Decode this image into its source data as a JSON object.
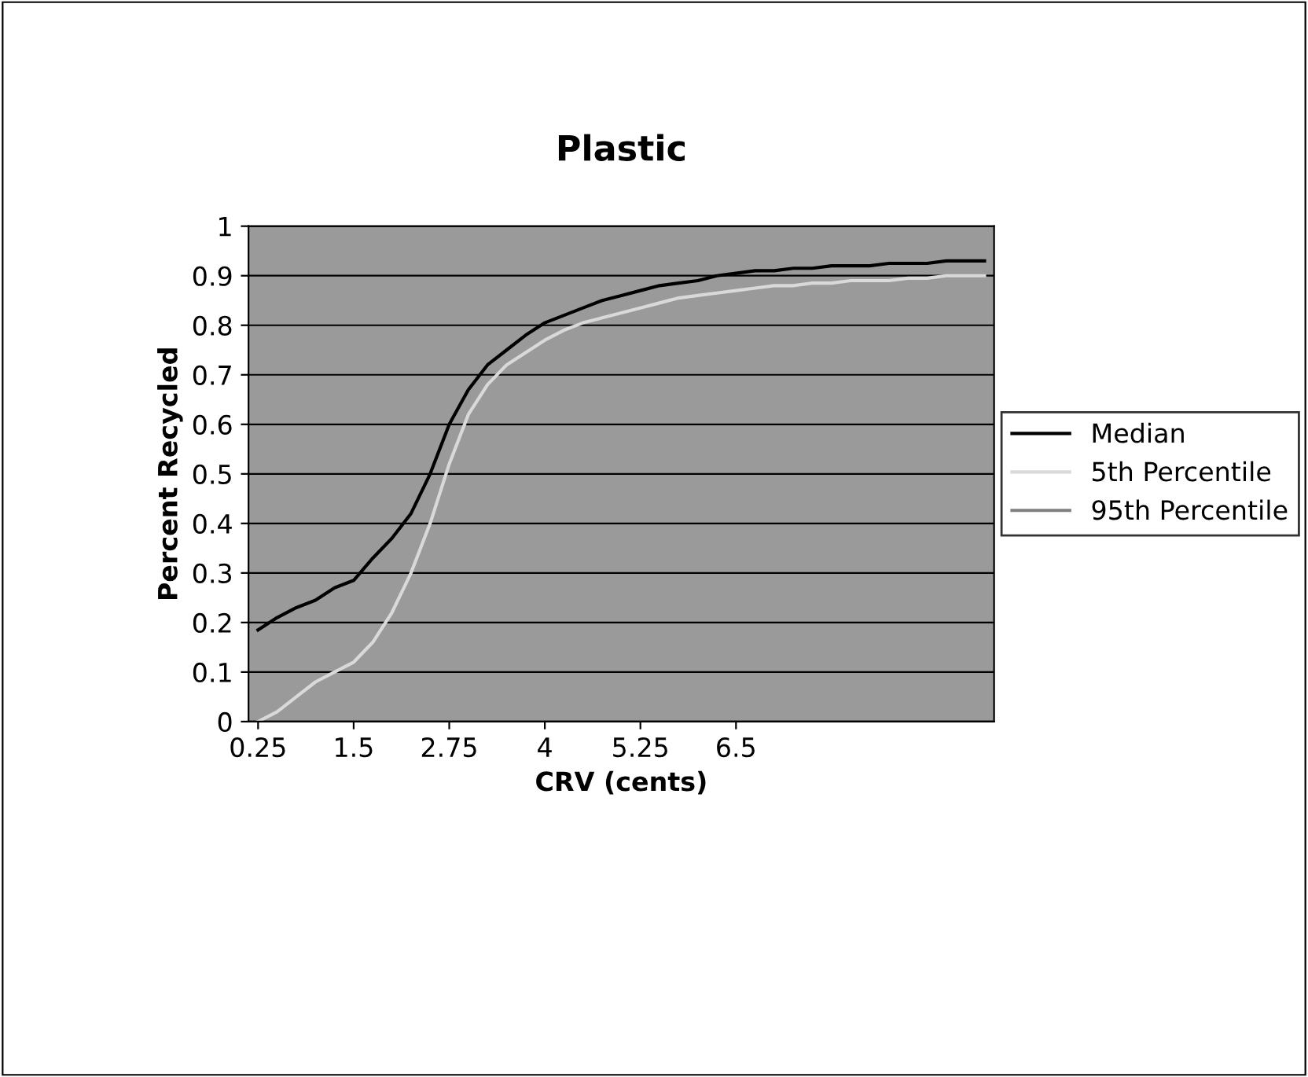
{
  "chart_data": {
    "type": "line",
    "title": "Plastic",
    "xlabel": "CRV (cents)",
    "ylabel": "Percent Recycled",
    "categories": [
      "0.25",
      null,
      null,
      null,
      null,
      "1.5",
      null,
      null,
      null,
      null,
      "2.75",
      null,
      null,
      null,
      null,
      "4",
      null,
      null,
      null,
      null,
      "5.25",
      null,
      null,
      null,
      null,
      "6.5",
      null,
      null,
      null,
      null,
      null,
      null,
      null,
      null,
      null,
      null,
      null,
      null,
      null
    ],
    "series": [
      {
        "name": "Median",
        "color": "#000000",
        "values": [
          0.185,
          0.21,
          0.23,
          0.245,
          0.27,
          0.285,
          0.33,
          0.37,
          0.42,
          0.5,
          0.6,
          0.67,
          0.72,
          0.75,
          0.78,
          0.805,
          0.82,
          0.835,
          0.85,
          0.86,
          0.87,
          0.88,
          0.885,
          0.89,
          0.9,
          0.905,
          0.91,
          0.91,
          0.915,
          0.915,
          0.92,
          0.92,
          0.92,
          0.925,
          0.925,
          0.925,
          0.93,
          0.93,
          0.93
        ]
      },
      {
        "name": "5th Percentile",
        "color": "#d9d9d9",
        "values": [
          0.0,
          0.02,
          0.05,
          0.08,
          0.1,
          0.12,
          0.16,
          0.22,
          0.3,
          0.4,
          0.52,
          0.62,
          0.68,
          0.72,
          0.745,
          0.77,
          0.79,
          0.805,
          0.815,
          0.825,
          0.835,
          0.845,
          0.855,
          0.86,
          0.865,
          0.87,
          0.875,
          0.88,
          0.88,
          0.885,
          0.885,
          0.89,
          0.89,
          0.89,
          0.895,
          0.895,
          0.9,
          0.9,
          0.9
        ]
      },
      {
        "name": "95th Percentile",
        "color": "#808080",
        "values": [
          null,
          null,
          null,
          null,
          null,
          null,
          null,
          null,
          null,
          null,
          null,
          null,
          null,
          null,
          null,
          null,
          null,
          null,
          null,
          null,
          null,
          null,
          null,
          null,
          null,
          null,
          null,
          null,
          null,
          null,
          null,
          null,
          null,
          null,
          null,
          null,
          null,
          null,
          null
        ]
      }
    ],
    "ylim": [
      0,
      1
    ],
    "yticks": [
      0,
      0.1,
      0.2,
      0.3,
      0.4,
      0.5,
      0.6,
      0.7,
      0.8,
      0.9,
      1
    ],
    "grid": "y",
    "legend": "right",
    "marker": "none",
    "line_style": "solid"
  }
}
